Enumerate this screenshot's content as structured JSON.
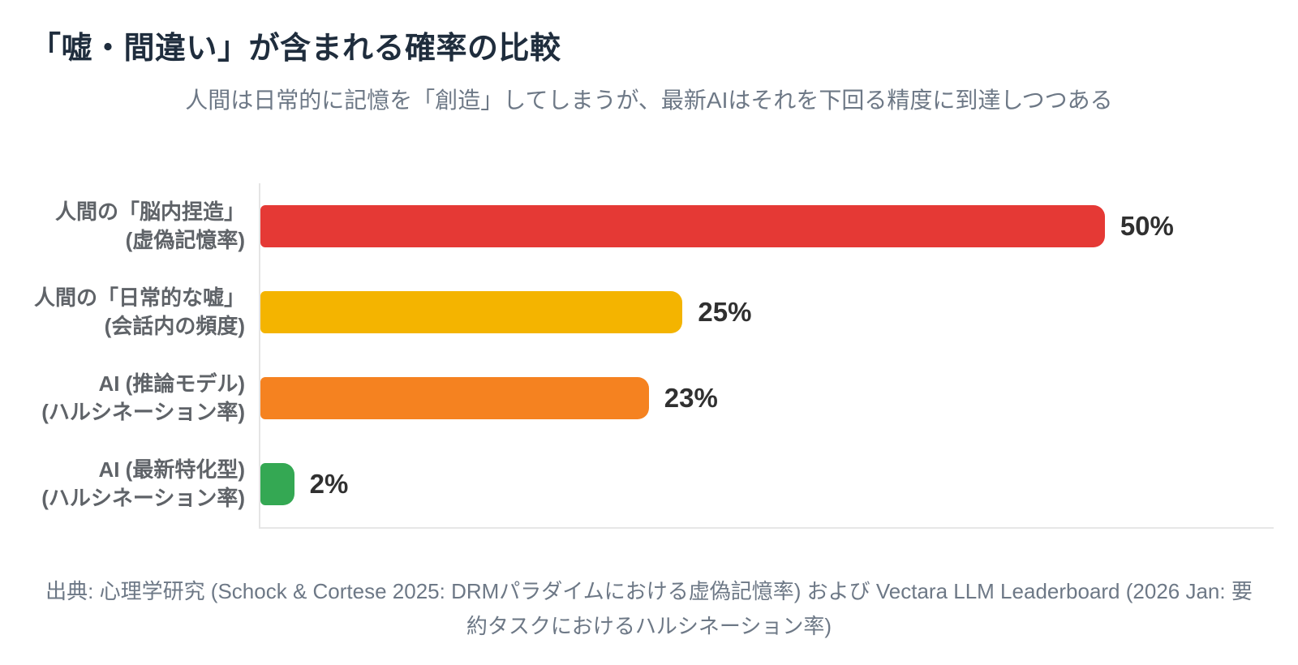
{
  "page": {
    "background": "#ffffff",
    "title_color": "#1f2d3d",
    "subtitle_color": "#6d7886",
    "category_label_color": "#5f6368",
    "value_label_color": "#303030",
    "source_color": "#6d7886",
    "axis_color": "#e5e5e5"
  },
  "chart_data": {
    "type": "bar",
    "orientation": "horizontal",
    "title": "「嘘・間違い」が含まれる確率の比較",
    "subtitle": "人間は日常的に記憶を「創造」してしまうが、最新AIはそれを下回る精度に到達しつつある",
    "source": "出典: 心理学研究 (Schock & Cortese 2025: DRMパラダイムにおける虚偽記憶率) および Vectara LLM Leaderboard (2026 Jan: 要約タスクにおけるハルシネーション率)",
    "xlim": [
      0,
      60
    ],
    "xlabel": "",
    "ylabel": "",
    "grid": false,
    "legend": false,
    "value_unit": "%",
    "categories": [
      "人間の「脳内捏造」 (虚偽記憶率)",
      "人間の「日常的な嘘」 (会話内の頻度)",
      "AI (推論モデル) (ハルシネーション率)",
      "AI (最新特化型) (ハルシネーション率)"
    ],
    "values": [
      50,
      25,
      23,
      2
    ],
    "bars": [
      {
        "label_line1": "人間の「脳内捏造」",
        "label_line2": "(虚偽記憶率)",
        "value": 50,
        "value_label": "50%",
        "color": "#E53935"
      },
      {
        "label_line1": "人間の「日常的な嘘」",
        "label_line2": "(会話内の頻度)",
        "value": 25,
        "value_label": "25%",
        "color": "#F4B400"
      },
      {
        "label_line1": "AI (推論モデル)",
        "label_line2": "(ハルシネーション率)",
        "value": 23,
        "value_label": "23%",
        "color": "#F58220"
      },
      {
        "label_line1": "AI (最新特化型)",
        "label_line2": "(ハルシネーション率)",
        "value": 2,
        "value_label": "2%",
        "color": "#34A853"
      }
    ]
  }
}
